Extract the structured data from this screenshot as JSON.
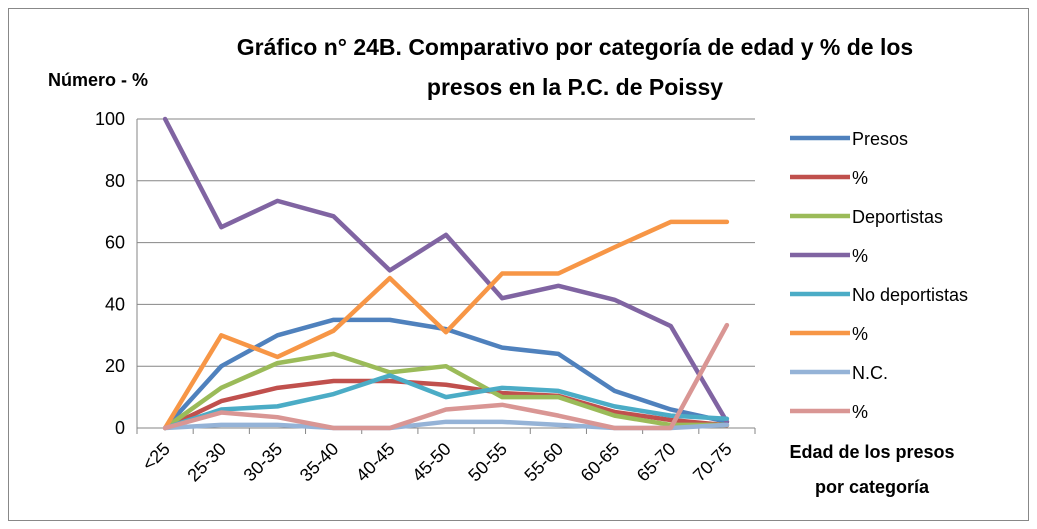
{
  "chart_data": {
    "type": "line",
    "title": [
      "Gráfico n° 24B. Comparativo por categoría de edad y % de los",
      "presos en la P.C. de Poissy"
    ],
    "y_label": "Número - %",
    "x_label": [
      "Edad de los presos",
      "por categoría"
    ],
    "categories": [
      "<25",
      "25-30",
      "30-35",
      "35-40",
      "40-45",
      "45-50",
      "50-55",
      "55-60",
      "60-65",
      "65-70",
      "70-75"
    ],
    "series": [
      {
        "name": "Presos",
        "color": "#4F81BD",
        "values": [
          0,
          20,
          30,
          35,
          35,
          32,
          26,
          24,
          12,
          6,
          2
        ]
      },
      {
        "name": "%",
        "color": "#C0504D",
        "values": [
          0,
          8.7,
          13,
          15.2,
          15.2,
          14,
          11.3,
          10.4,
          5.2,
          2.6,
          0.9
        ]
      },
      {
        "name": "Deportistas",
        "color": "#9BBB59",
        "values": [
          0,
          13,
          21,
          24,
          18,
          20,
          10,
          10,
          4,
          1,
          1
        ]
      },
      {
        "name": "%",
        "color": "#8064A2",
        "values": [
          100,
          65,
          73.5,
          68.5,
          51,
          62.5,
          42,
          46,
          41.5,
          33,
          2
        ]
      },
      {
        "name": "No deportistas",
        "color": "#4BACC6",
        "values": [
          0,
          6,
          7,
          11,
          17,
          10,
          13,
          12,
          7,
          4,
          3
        ]
      },
      {
        "name": "%",
        "color": "#F79646",
        "values": [
          0,
          30,
          23,
          31.5,
          48.5,
          31,
          50,
          50,
          58.5,
          66.7,
          66.7
        ]
      },
      {
        "name": "N.C.",
        "color": "#95B3D7",
        "values": [
          0,
          1,
          1,
          0,
          0,
          2,
          2,
          1,
          0,
          0,
          1
        ]
      },
      {
        "name": "%",
        "color": "#D99694",
        "values": [
          0,
          5,
          3.5,
          0,
          0,
          6,
          7.5,
          4,
          0,
          0,
          33.3
        ]
      }
    ],
    "ylim": [
      0,
      100
    ],
    "yticks": [
      0,
      20,
      40,
      60,
      80,
      100
    ],
    "grid": true,
    "legend": "right"
  }
}
